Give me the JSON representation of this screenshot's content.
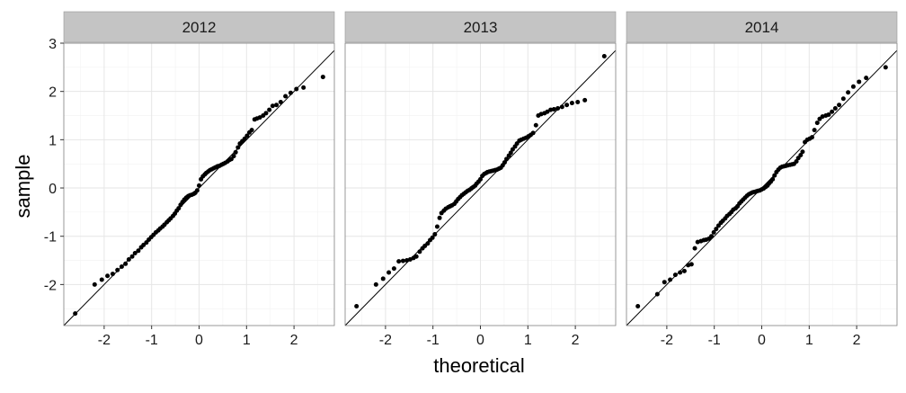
{
  "chart_data": {
    "type": "scatter",
    "xlabel": "theoretical",
    "ylabel": "sample",
    "xlim": [
      -2.85,
      2.85
    ],
    "ylim": [
      -2.85,
      3.0
    ],
    "x_ticks": [
      -2,
      -1,
      0,
      1,
      2
    ],
    "x_tick_labels": [
      "-2",
      "-1",
      "0",
      "1",
      "2"
    ],
    "y_ticks": [
      -2,
      -1,
      0,
      1,
      2,
      3
    ],
    "y_tick_labels": [
      "-2",
      "-1",
      "0",
      "1",
      "2",
      "3"
    ],
    "grid": true,
    "reference_line": "y = x",
    "panels": [
      {
        "label": "2012",
        "points": [
          [
            -2.61,
            -2.6
          ],
          [
            -2.2,
            -2.0
          ],
          [
            -2.05,
            -1.9
          ],
          [
            -1.93,
            -1.82
          ],
          [
            -1.82,
            -1.78
          ],
          [
            -1.72,
            -1.7
          ],
          [
            -1.63,
            -1.63
          ],
          [
            -1.55,
            -1.57
          ],
          [
            -1.48,
            -1.48
          ],
          [
            -1.41,
            -1.42
          ],
          [
            -1.35,
            -1.35
          ],
          [
            -1.28,
            -1.3
          ],
          [
            -1.22,
            -1.23
          ],
          [
            -1.17,
            -1.18
          ],
          [
            -1.11,
            -1.13
          ],
          [
            -1.06,
            -1.07
          ],
          [
            -1.01,
            -1.02
          ],
          [
            -0.96,
            -0.97
          ],
          [
            -0.91,
            -0.92
          ],
          [
            -0.86,
            -0.88
          ],
          [
            -0.82,
            -0.84
          ],
          [
            -0.77,
            -0.8
          ],
          [
            -0.73,
            -0.76
          ],
          [
            -0.68,
            -0.71
          ],
          [
            -0.64,
            -0.67
          ],
          [
            -0.6,
            -0.63
          ],
          [
            -0.55,
            -0.58
          ],
          [
            -0.51,
            -0.53
          ],
          [
            -0.47,
            -0.47
          ],
          [
            -0.43,
            -0.42
          ],
          [
            -0.39,
            -0.35
          ],
          [
            -0.35,
            -0.29
          ],
          [
            -0.31,
            -0.24
          ],
          [
            -0.27,
            -0.2
          ],
          [
            -0.23,
            -0.17
          ],
          [
            -0.19,
            -0.15
          ],
          [
            -0.15,
            -0.14
          ],
          [
            -0.11,
            -0.12
          ],
          [
            -0.08,
            -0.1
          ],
          [
            -0.04,
            -0.05
          ],
          [
            0.0,
            0.05
          ],
          [
            0.04,
            0.18
          ],
          [
            0.08,
            0.24
          ],
          [
            0.12,
            0.28
          ],
          [
            0.15,
            0.31
          ],
          [
            0.19,
            0.34
          ],
          [
            0.23,
            0.37
          ],
          [
            0.27,
            0.39
          ],
          [
            0.31,
            0.41
          ],
          [
            0.35,
            0.43
          ],
          [
            0.39,
            0.45
          ],
          [
            0.43,
            0.46
          ],
          [
            0.47,
            0.48
          ],
          [
            0.51,
            0.5
          ],
          [
            0.55,
            0.52
          ],
          [
            0.6,
            0.55
          ],
          [
            0.64,
            0.58
          ],
          [
            0.68,
            0.6
          ],
          [
            0.73,
            0.66
          ],
          [
            0.77,
            0.74
          ],
          [
            0.82,
            0.84
          ],
          [
            0.86,
            0.92
          ],
          [
            0.91,
            0.97
          ],
          [
            0.96,
            1.02
          ],
          [
            1.01,
            1.08
          ],
          [
            1.06,
            1.15
          ],
          [
            1.11,
            1.2
          ],
          [
            1.17,
            1.42
          ],
          [
            1.22,
            1.44
          ],
          [
            1.28,
            1.46
          ],
          [
            1.35,
            1.5
          ],
          [
            1.41,
            1.55
          ],
          [
            1.48,
            1.62
          ],
          [
            1.55,
            1.7
          ],
          [
            1.63,
            1.72
          ],
          [
            1.72,
            1.78
          ],
          [
            1.82,
            1.9
          ],
          [
            1.93,
            1.97
          ],
          [
            2.05,
            2.05
          ],
          [
            2.2,
            2.08
          ],
          [
            2.61,
            2.3
          ]
        ]
      },
      {
        "label": "2013",
        "points": [
          [
            -2.61,
            -2.45
          ],
          [
            -2.2,
            -2.0
          ],
          [
            -2.05,
            -1.88
          ],
          [
            -1.93,
            -1.75
          ],
          [
            -1.82,
            -1.67
          ],
          [
            -1.72,
            -1.52
          ],
          [
            -1.63,
            -1.51
          ],
          [
            -1.55,
            -1.5
          ],
          [
            -1.48,
            -1.48
          ],
          [
            -1.41,
            -1.45
          ],
          [
            -1.35,
            -1.42
          ],
          [
            -1.28,
            -1.32
          ],
          [
            -1.22,
            -1.25
          ],
          [
            -1.17,
            -1.2
          ],
          [
            -1.11,
            -1.15
          ],
          [
            -1.06,
            -1.08
          ],
          [
            -1.01,
            -1.03
          ],
          [
            -0.96,
            -0.96
          ],
          [
            -0.91,
            -0.8
          ],
          [
            -0.86,
            -0.62
          ],
          [
            -0.82,
            -0.52
          ],
          [
            -0.77,
            -0.47
          ],
          [
            -0.73,
            -0.43
          ],
          [
            -0.68,
            -0.4
          ],
          [
            -0.64,
            -0.38
          ],
          [
            -0.6,
            -0.36
          ],
          [
            -0.55,
            -0.33
          ],
          [
            -0.51,
            -0.28
          ],
          [
            -0.47,
            -0.23
          ],
          [
            -0.43,
            -0.19
          ],
          [
            -0.39,
            -0.15
          ],
          [
            -0.35,
            -0.12
          ],
          [
            -0.31,
            -0.09
          ],
          [
            -0.27,
            -0.06
          ],
          [
            -0.23,
            -0.04
          ],
          [
            -0.19,
            -0.01
          ],
          [
            -0.15,
            0.02
          ],
          [
            -0.11,
            0.05
          ],
          [
            -0.08,
            0.09
          ],
          [
            -0.04,
            0.13
          ],
          [
            0.0,
            0.18
          ],
          [
            0.04,
            0.25
          ],
          [
            0.08,
            0.29
          ],
          [
            0.12,
            0.31
          ],
          [
            0.15,
            0.33
          ],
          [
            0.19,
            0.34
          ],
          [
            0.23,
            0.35
          ],
          [
            0.27,
            0.36
          ],
          [
            0.31,
            0.37
          ],
          [
            0.35,
            0.38
          ],
          [
            0.39,
            0.4
          ],
          [
            0.43,
            0.42
          ],
          [
            0.47,
            0.47
          ],
          [
            0.51,
            0.53
          ],
          [
            0.55,
            0.6
          ],
          [
            0.6,
            0.67
          ],
          [
            0.64,
            0.73
          ],
          [
            0.68,
            0.8
          ],
          [
            0.73,
            0.86
          ],
          [
            0.77,
            0.92
          ],
          [
            0.82,
            0.98
          ],
          [
            0.86,
            1.0
          ],
          [
            0.91,
            1.02
          ],
          [
            0.96,
            1.04
          ],
          [
            1.01,
            1.07
          ],
          [
            1.06,
            1.1
          ],
          [
            1.11,
            1.14
          ],
          [
            1.17,
            1.3
          ],
          [
            1.22,
            1.5
          ],
          [
            1.28,
            1.53
          ],
          [
            1.35,
            1.55
          ],
          [
            1.41,
            1.58
          ],
          [
            1.48,
            1.62
          ],
          [
            1.55,
            1.63
          ],
          [
            1.63,
            1.65
          ],
          [
            1.72,
            1.68
          ],
          [
            1.82,
            1.72
          ],
          [
            1.93,
            1.76
          ],
          [
            2.05,
            1.78
          ],
          [
            2.2,
            1.82
          ],
          [
            2.61,
            2.73
          ]
        ]
      },
      {
        "label": "2014",
        "points": [
          [
            -2.61,
            -2.45
          ],
          [
            -2.2,
            -2.2
          ],
          [
            -2.05,
            -1.95
          ],
          [
            -1.93,
            -1.9
          ],
          [
            -1.82,
            -1.8
          ],
          [
            -1.72,
            -1.75
          ],
          [
            -1.63,
            -1.72
          ],
          [
            -1.55,
            -1.6
          ],
          [
            -1.48,
            -1.58
          ],
          [
            -1.41,
            -1.25
          ],
          [
            -1.35,
            -1.12
          ],
          [
            -1.28,
            -1.1
          ],
          [
            -1.22,
            -1.08
          ],
          [
            -1.17,
            -1.07
          ],
          [
            -1.11,
            -1.05
          ],
          [
            -1.06,
            -1.0
          ],
          [
            -1.01,
            -0.92
          ],
          [
            -0.96,
            -0.85
          ],
          [
            -0.91,
            -0.78
          ],
          [
            -0.86,
            -0.72
          ],
          [
            -0.82,
            -0.68
          ],
          [
            -0.77,
            -0.63
          ],
          [
            -0.73,
            -0.58
          ],
          [
            -0.68,
            -0.54
          ],
          [
            -0.64,
            -0.5
          ],
          [
            -0.6,
            -0.45
          ],
          [
            -0.55,
            -0.42
          ],
          [
            -0.51,
            -0.38
          ],
          [
            -0.47,
            -0.32
          ],
          [
            -0.43,
            -0.28
          ],
          [
            -0.39,
            -0.24
          ],
          [
            -0.35,
            -0.2
          ],
          [
            -0.31,
            -0.16
          ],
          [
            -0.27,
            -0.13
          ],
          [
            -0.23,
            -0.11
          ],
          [
            -0.19,
            -0.09
          ],
          [
            -0.15,
            -0.08
          ],
          [
            -0.11,
            -0.07
          ],
          [
            -0.08,
            -0.06
          ],
          [
            -0.04,
            -0.05
          ],
          [
            0.0,
            -0.03
          ],
          [
            0.04,
            -0.01
          ],
          [
            0.08,
            0.02
          ],
          [
            0.12,
            0.05
          ],
          [
            0.15,
            0.09
          ],
          [
            0.19,
            0.13
          ],
          [
            0.23,
            0.18
          ],
          [
            0.27,
            0.26
          ],
          [
            0.31,
            0.33
          ],
          [
            0.35,
            0.38
          ],
          [
            0.39,
            0.42
          ],
          [
            0.43,
            0.44
          ],
          [
            0.47,
            0.45
          ],
          [
            0.51,
            0.46
          ],
          [
            0.55,
            0.47
          ],
          [
            0.6,
            0.48
          ],
          [
            0.64,
            0.49
          ],
          [
            0.68,
            0.5
          ],
          [
            0.73,
            0.55
          ],
          [
            0.77,
            0.62
          ],
          [
            0.82,
            0.68
          ],
          [
            0.86,
            0.75
          ],
          [
            0.91,
            0.95
          ],
          [
            0.96,
            1.0
          ],
          [
            1.01,
            1.02
          ],
          [
            1.06,
            1.05
          ],
          [
            1.11,
            1.2
          ],
          [
            1.17,
            1.35
          ],
          [
            1.22,
            1.43
          ],
          [
            1.28,
            1.48
          ],
          [
            1.35,
            1.5
          ],
          [
            1.41,
            1.52
          ],
          [
            1.48,
            1.58
          ],
          [
            1.55,
            1.65
          ],
          [
            1.63,
            1.72
          ],
          [
            1.72,
            1.85
          ],
          [
            1.82,
            1.98
          ],
          [
            1.93,
            2.1
          ],
          [
            2.05,
            2.2
          ],
          [
            2.2,
            2.28
          ],
          [
            2.61,
            2.5
          ]
        ]
      }
    ]
  }
}
